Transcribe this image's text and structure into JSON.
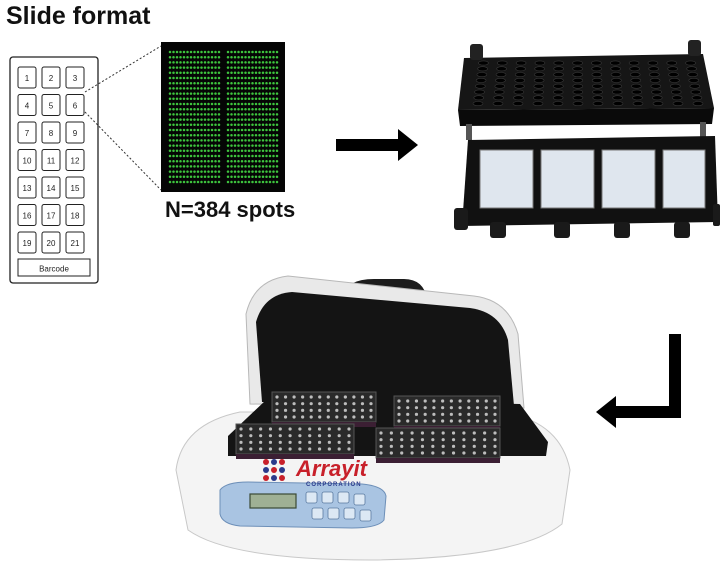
{
  "title": "Slide format",
  "spot_count_label": "N=384 spots",
  "slide": {
    "well_numbers": [
      "1",
      "2",
      "3",
      "4",
      "5",
      "6",
      "7",
      "8",
      "9",
      "10",
      "11",
      "12",
      "13",
      "14",
      "15",
      "16",
      "17",
      "18",
      "19",
      "20",
      "21"
    ],
    "barcode_label": "Barcode",
    "zoomed_well": "6"
  },
  "microarray": {
    "spot_color": "#3ec43e",
    "background": "#050505",
    "blocks": 2
  },
  "incubator": {
    "brand": "Arrayit",
    "subbrand": "CORPORATION",
    "brand_colors": [
      "#c8202a",
      "#2a3a8c"
    ]
  },
  "flow": [
    "slide",
    "cassette",
    "incubator"
  ]
}
